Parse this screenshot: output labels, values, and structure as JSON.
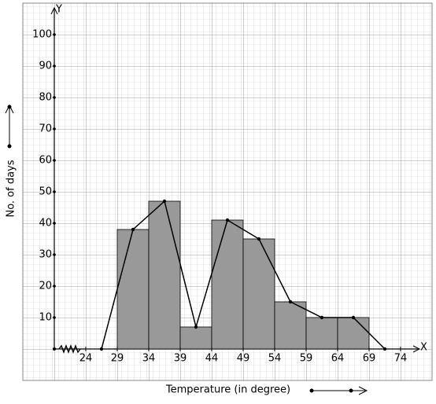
{
  "chart_data": {
    "type": "histogram",
    "x_label": "Temperature (in degree)",
    "y_label": "No. of days",
    "x_axis_name": "X",
    "y_axis_name": "Y",
    "bins": [
      29,
      34,
      39,
      44,
      49,
      54,
      59,
      64,
      69
    ],
    "counts": [
      38,
      47,
      7,
      41,
      35,
      15,
      10,
      10
    ],
    "color": "#999999",
    "polygon": {
      "x": [
        26.5,
        31.5,
        36.5,
        41.5,
        46.5,
        51.5,
        56.5,
        61.5,
        66.5,
        71.5
      ],
      "values": [
        0,
        38,
        47,
        7,
        41,
        35,
        15,
        10,
        10,
        0
      ]
    },
    "xlim": [
      19,
      77
    ],
    "ylim": [
      0,
      110
    ],
    "xticks": [
      24,
      29,
      34,
      39,
      44,
      49,
      54,
      59,
      64,
      69,
      74
    ],
    "yticks": [
      10,
      20,
      30,
      40,
      50,
      60,
      70,
      80,
      90,
      100
    ]
  }
}
